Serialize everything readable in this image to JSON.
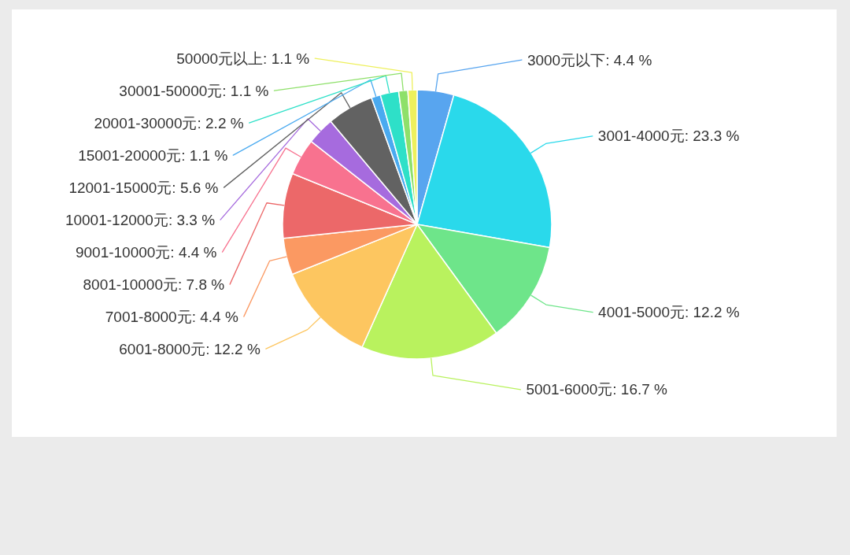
{
  "chart_data": {
    "type": "pie",
    "categories": [
      "3000元以下",
      "3001-4000元",
      "4001-5000元",
      "5001-6000元",
      "6001-8000元",
      "7001-8000元",
      "8001-10000元",
      "9001-10000元",
      "10001-12000元",
      "12001-15000元",
      "15001-20000元",
      "20001-30000元",
      "30001-50000元",
      "50000元以上"
    ],
    "values": [
      4.4,
      23.3,
      12.2,
      16.7,
      12.2,
      4.4,
      7.8,
      4.4,
      3.3,
      5.6,
      1.1,
      2.2,
      1.1,
      1.1
    ],
    "value_labels": [
      "4.4 %",
      "23.3 %",
      "12.2 %",
      "16.7 %",
      "12.2 %",
      "4.4 %",
      "7.8 %",
      "4.4 %",
      "3.3 %",
      "5.6 %",
      "1.1 %",
      "2.2 %",
      "1.1 %",
      "1.1 %"
    ],
    "colors": [
      "#58a5ef",
      "#2ad9eb",
      "#6ee58a",
      "#b9f25e",
      "#fdc660",
      "#fb9962",
      "#ec6869",
      "#f8728f",
      "#a66bde",
      "#626262",
      "#4aaaf0",
      "#2ee0c8",
      "#8ee06a",
      "#eef05c"
    ]
  }
}
